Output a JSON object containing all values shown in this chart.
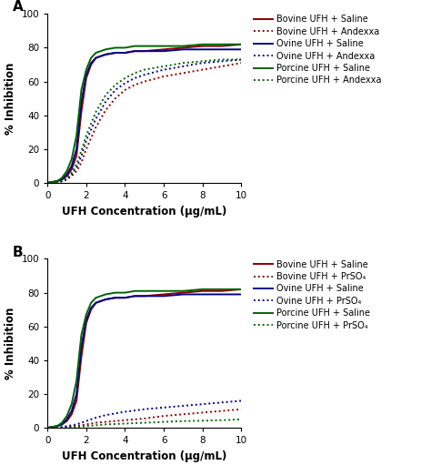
{
  "panel_A": {
    "title": "A",
    "xlabel": "UFH Concentration (μg/mL)",
    "ylabel": "% Inhibition",
    "xlim": [
      0,
      10
    ],
    "ylim": [
      0,
      100
    ],
    "xticks": [
      0,
      2,
      4,
      6,
      8,
      10
    ],
    "yticks": [
      0,
      20,
      40,
      60,
      80,
      100
    ],
    "series": [
      {
        "label": "Bovine UFH + Saline",
        "color": "#8B0000",
        "linestyle": "solid",
        "x": [
          0,
          0.25,
          0.5,
          0.75,
          1.0,
          1.25,
          1.5,
          1.75,
          2.0,
          2.25,
          2.5,
          3.0,
          3.5,
          4.0,
          4.5,
          5.0,
          6.0,
          7.0,
          8.0,
          9.0,
          10.0
        ],
        "y": [
          0,
          0.5,
          1,
          2,
          4,
          8,
          16,
          42,
          62,
          70,
          74,
          76,
          77,
          77,
          78,
          78,
          79,
          80,
          81,
          81,
          82
        ]
      },
      {
        "label": "Bovine UFH + Andexxa",
        "color": "#8B0000",
        "linestyle": "dotted",
        "x": [
          0,
          0.25,
          0.5,
          0.75,
          1.0,
          1.25,
          1.5,
          1.75,
          2.0,
          2.5,
          3.0,
          3.5,
          4.0,
          4.5,
          5.0,
          6.0,
          7.0,
          8.0,
          9.0,
          10.0
        ],
        "y": [
          0,
          0,
          0,
          1,
          2,
          4,
          7,
          12,
          20,
          33,
          43,
          50,
          55,
          58,
          60,
          63,
          65,
          67,
          69,
          71
        ]
      },
      {
        "label": "Ovine UFH + Saline",
        "color": "#00008B",
        "linestyle": "solid",
        "x": [
          0,
          0.25,
          0.5,
          0.75,
          1.0,
          1.25,
          1.5,
          1.75,
          2.0,
          2.25,
          2.5,
          3.0,
          3.5,
          4.0,
          4.5,
          5.0,
          6.0,
          7.0,
          8.0,
          9.0,
          10.0
        ],
        "y": [
          0,
          0.5,
          1,
          2,
          5,
          10,
          20,
          48,
          64,
          71,
          74,
          76,
          77,
          77,
          78,
          78,
          78,
          79,
          79,
          79,
          79
        ]
      },
      {
        "label": "Ovine UFH + Andexxa",
        "color": "#00008B",
        "linestyle": "dotted",
        "x": [
          0,
          0.25,
          0.5,
          0.75,
          1.0,
          1.25,
          1.5,
          1.75,
          2.0,
          2.5,
          3.0,
          3.5,
          4.0,
          4.5,
          5.0,
          6.0,
          7.0,
          8.0,
          9.0,
          10.0
        ],
        "y": [
          0,
          0,
          0,
          1,
          2,
          5,
          9,
          16,
          25,
          38,
          48,
          55,
          59,
          62,
          64,
          67,
          69,
          71,
          72,
          73
        ]
      },
      {
        "label": "Porcine UFH + Saline",
        "color": "#006400",
        "linestyle": "solid",
        "x": [
          0,
          0.25,
          0.5,
          0.75,
          1.0,
          1.25,
          1.5,
          1.75,
          2.0,
          2.25,
          2.5,
          3.0,
          3.5,
          4.0,
          4.5,
          5.0,
          6.0,
          7.0,
          8.0,
          9.0,
          10.0
        ],
        "y": [
          0,
          0.5,
          1,
          3,
          7,
          14,
          28,
          55,
          67,
          74,
          77,
          79,
          80,
          80,
          81,
          81,
          81,
          81,
          82,
          82,
          82
        ]
      },
      {
        "label": "Porcine UFH + Andexxa",
        "color": "#006400",
        "linestyle": "dotted",
        "x": [
          0,
          0.25,
          0.5,
          0.75,
          1.0,
          1.25,
          1.5,
          1.75,
          2.0,
          2.5,
          3.0,
          3.5,
          4.0,
          4.5,
          5.0,
          6.0,
          7.0,
          8.0,
          9.0,
          10.0
        ],
        "y": [
          0,
          0,
          0,
          1,
          3,
          6,
          11,
          19,
          28,
          42,
          52,
          58,
          62,
          65,
          67,
          69,
          71,
          72,
          73,
          73
        ]
      }
    ]
  },
  "panel_B": {
    "title": "B",
    "xlabel": "UFH Concentration (μg/mL)",
    "ylabel": "% Inhibition",
    "xlim": [
      0,
      10
    ],
    "ylim": [
      0,
      100
    ],
    "xticks": [
      0,
      2,
      4,
      6,
      8,
      10
    ],
    "yticks": [
      0,
      20,
      40,
      60,
      80,
      100
    ],
    "series": [
      {
        "label": "Bovine UFH + Saline",
        "color": "#8B0000",
        "linestyle": "solid",
        "x": [
          0,
          0.25,
          0.5,
          0.75,
          1.0,
          1.25,
          1.5,
          1.75,
          2.0,
          2.25,
          2.5,
          3.0,
          3.5,
          4.0,
          4.5,
          5.0,
          6.0,
          7.0,
          8.0,
          9.0,
          10.0
        ],
        "y": [
          0,
          0.5,
          1,
          2,
          4,
          8,
          16,
          42,
          62,
          70,
          74,
          76,
          77,
          77,
          78,
          78,
          79,
          80,
          81,
          81,
          82
        ]
      },
      {
        "label": "Bovine UFH + PrSO₄",
        "color": "#8B0000",
        "linestyle": "dotted",
        "x": [
          0,
          0.5,
          1.0,
          1.5,
          2.0,
          2.5,
          3.0,
          4.0,
          5.0,
          6.0,
          7.0,
          8.0,
          9.0,
          10.0
        ],
        "y": [
          0,
          0,
          0.5,
          1,
          2,
          3,
          3.5,
          4.5,
          5.5,
          7,
          8,
          9,
          10,
          11
        ]
      },
      {
        "label": "Ovine UFH + Saline",
        "color": "#00008B",
        "linestyle": "solid",
        "x": [
          0,
          0.25,
          0.5,
          0.75,
          1.0,
          1.25,
          1.5,
          1.75,
          2.0,
          2.25,
          2.5,
          3.0,
          3.5,
          4.0,
          4.5,
          5.0,
          6.0,
          7.0,
          8.0,
          9.0,
          10.0
        ],
        "y": [
          0,
          0.5,
          1,
          2,
          5,
          10,
          20,
          48,
          64,
          71,
          74,
          76,
          77,
          77,
          78,
          78,
          78,
          79,
          79,
          79,
          79
        ]
      },
      {
        "label": "Ovine UFH + PrSO₄",
        "color": "#00008B",
        "linestyle": "dotted",
        "x": [
          0,
          0.5,
          1.0,
          1.5,
          2.0,
          2.5,
          3.0,
          4.0,
          5.0,
          6.0,
          7.0,
          8.0,
          9.0,
          10.0
        ],
        "y": [
          0,
          0,
          1,
          2,
          4,
          6,
          7.5,
          9.5,
          11,
          12,
          13,
          14,
          15,
          16
        ]
      },
      {
        "label": "Porcine UFH + Saline",
        "color": "#006400",
        "linestyle": "solid",
        "x": [
          0,
          0.25,
          0.5,
          0.75,
          1.0,
          1.25,
          1.5,
          1.75,
          2.0,
          2.25,
          2.5,
          3.0,
          3.5,
          4.0,
          4.5,
          5.0,
          6.0,
          7.0,
          8.0,
          9.0,
          10.0
        ],
        "y": [
          0,
          0.5,
          1,
          3,
          7,
          14,
          28,
          55,
          67,
          74,
          77,
          79,
          80,
          80,
          81,
          81,
          81,
          81,
          82,
          82,
          82
        ]
      },
      {
        "label": "Porcine UFH + PrSO₄",
        "color": "#006400",
        "linestyle": "dotted",
        "x": [
          0,
          0.5,
          1.0,
          1.5,
          2.0,
          2.5,
          3.0,
          4.0,
          5.0,
          6.0,
          7.0,
          8.0,
          9.0,
          10.0
        ],
        "y": [
          0,
          0,
          0,
          0.5,
          1,
          1.5,
          2,
          2.5,
          3,
          3.5,
          4,
          4.2,
          4.5,
          5
        ]
      }
    ]
  },
  "legend_fontsize": 7.0,
  "axis_label_fontsize": 8.5,
  "tick_fontsize": 7.5,
  "panel_label_fontsize": 11,
  "linewidth": 1.4
}
